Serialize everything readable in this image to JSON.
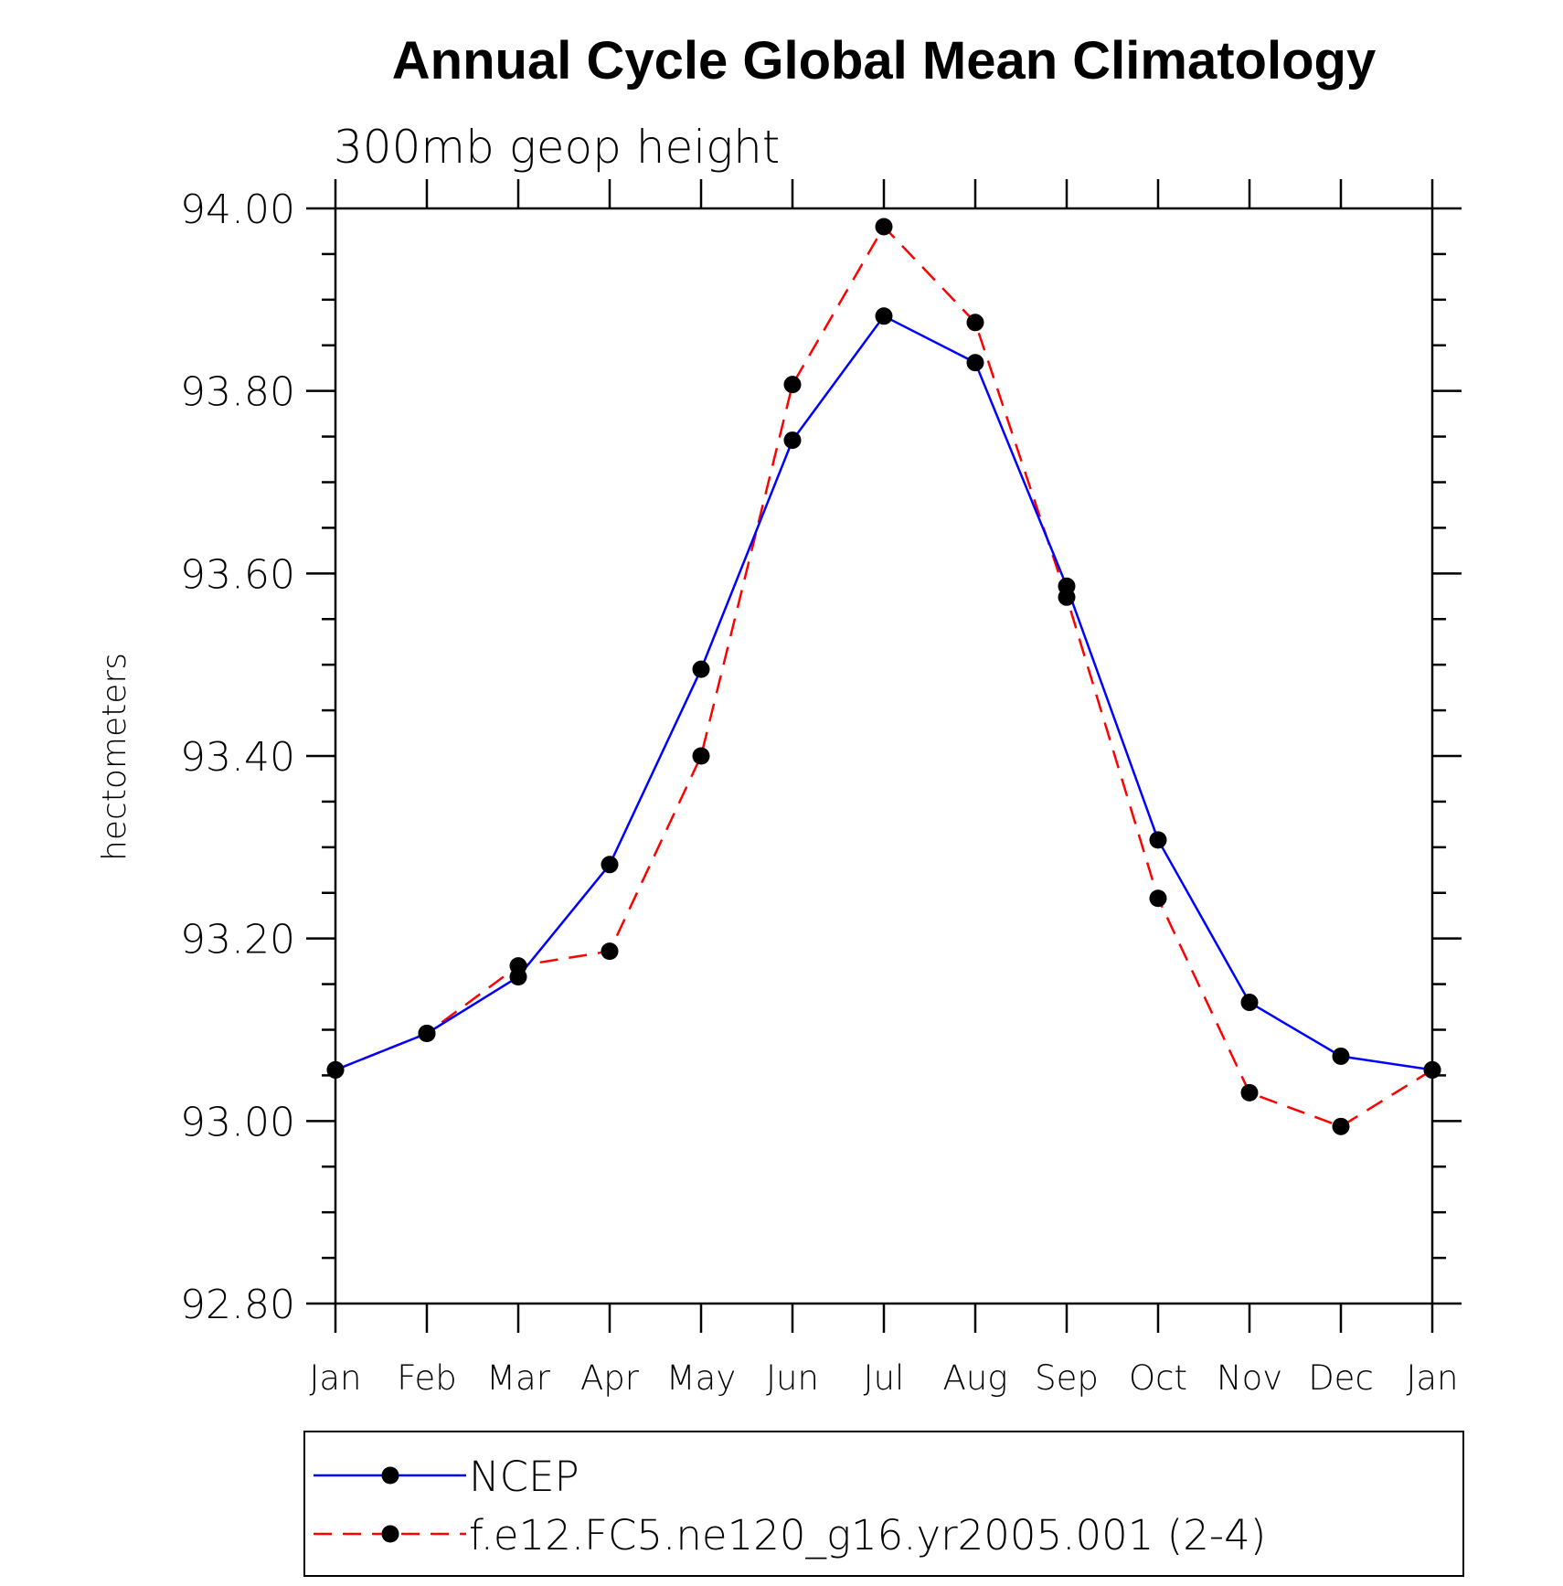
{
  "chart_data": {
    "type": "line",
    "title": "Annual Cycle Global Mean Climatology",
    "subtitle": "300mb geop height",
    "ylabel": "hectometers",
    "xlabel": "",
    "categories": [
      "Jan",
      "Feb",
      "Mar",
      "Apr",
      "May",
      "Jun",
      "Jul",
      "Aug",
      "Sep",
      "Oct",
      "Nov",
      "Dec",
      "Jan"
    ],
    "ylim": [
      92.8,
      94.0
    ],
    "yticks": [
      "92.80",
      "93.00",
      "93.20",
      "93.40",
      "93.60",
      "93.80",
      "94.00"
    ],
    "legend_position": "bottom",
    "series": [
      {
        "name": "NCEP",
        "color": "#0000ff",
        "style": "solid",
        "marker": "filled-circle",
        "values": [
          93.056,
          93.096,
          93.158,
          93.281,
          93.495,
          93.746,
          93.882,
          93.831,
          93.586,
          93.308,
          93.13,
          93.071,
          93.056
        ]
      },
      {
        "name": "f.e12.FC5.ne120_g16.yr2005.001 (2-4)",
        "color": "#ff0000",
        "style": "dashed",
        "marker": "filled-circle",
        "values": [
          93.056,
          93.096,
          93.17,
          93.186,
          93.4,
          93.807,
          93.98,
          93.875,
          93.574,
          93.244,
          93.031,
          92.994,
          93.056
        ]
      }
    ]
  }
}
